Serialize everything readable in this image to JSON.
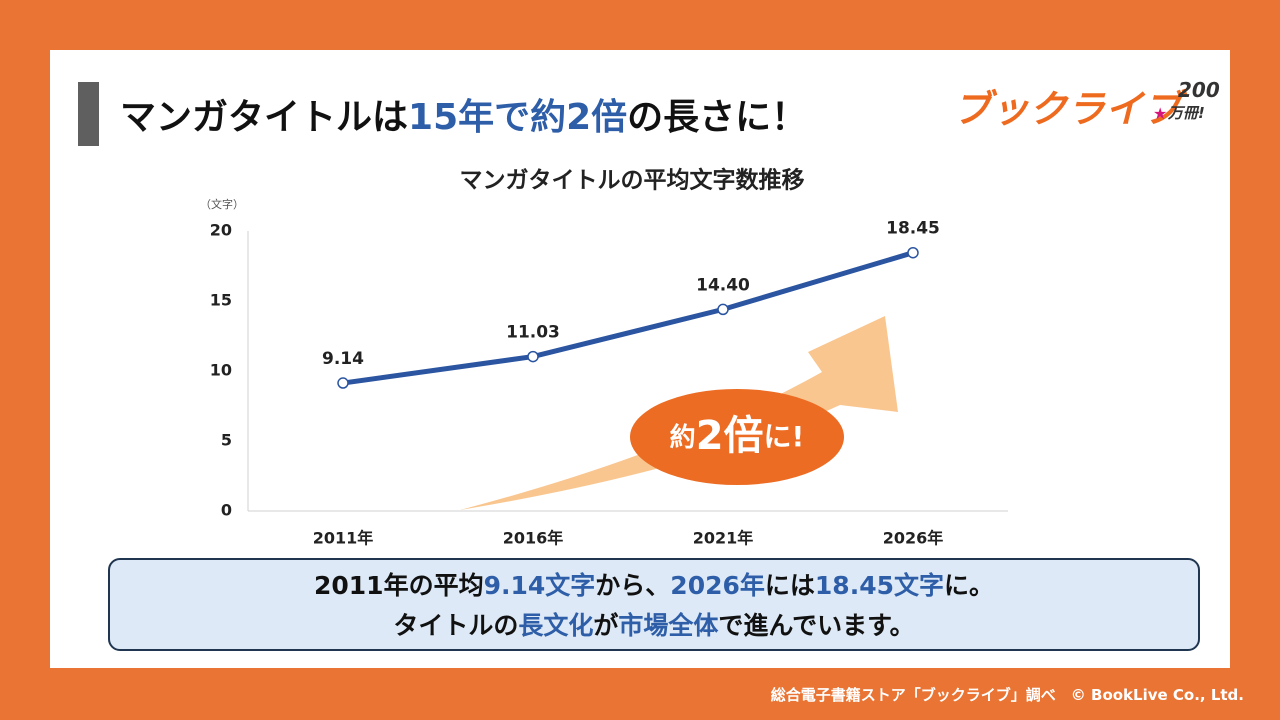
{
  "header": {
    "title": [
      {
        "text": "マンガタイトルは"
      },
      {
        "text": "15年で約2倍",
        "color": "#2e5ea8"
      },
      {
        "text": "の長さに！"
      }
    ]
  },
  "logo": {
    "text": "ブックライブ",
    "badge": "200",
    "badge_sub": "万冊!"
  },
  "chart_data": {
    "type": "line",
    "title": "マンガタイトルの平均文字数推移",
    "y_label": "（文字）",
    "categories": [
      "2011年",
      "2016年",
      "2021年",
      "2026年"
    ],
    "values": [
      9.14,
      11.03,
      14.4,
      18.45
    ],
    "value_labels": [
      "9.14",
      "11.03",
      "14.40",
      "18.45"
    ],
    "color": "#2b55a0",
    "ylim": [
      0,
      20
    ],
    "yticks": [
      0,
      5,
      10,
      15,
      20
    ],
    "grid": false,
    "annotation": [
      "約",
      "2倍",
      "に!"
    ]
  },
  "summary": {
    "lines": [
      [
        {
          "text": "2011年の平均"
        },
        {
          "text": "9.14文字",
          "color": "#2e5ea8"
        },
        {
          "text": "から、"
        },
        {
          "text": "2026年",
          "color": "#2e5ea8"
        },
        {
          "text": "には"
        },
        {
          "text": "18.45文字",
          "color": "#2e5ea8"
        },
        {
          "text": "に。"
        }
      ],
      [
        {
          "text": "タイトルの"
        },
        {
          "text": "長文化",
          "color": "#2e5ea8"
        },
        {
          "text": "が"
        },
        {
          "text": "市場全体",
          "color": "#2e5ea8"
        },
        {
          "text": "で進んでいます。"
        }
      ]
    ]
  },
  "footer": "総合電子書籍ストア「ブックライブ」調べ　© BookLive Co., Ltd."
}
